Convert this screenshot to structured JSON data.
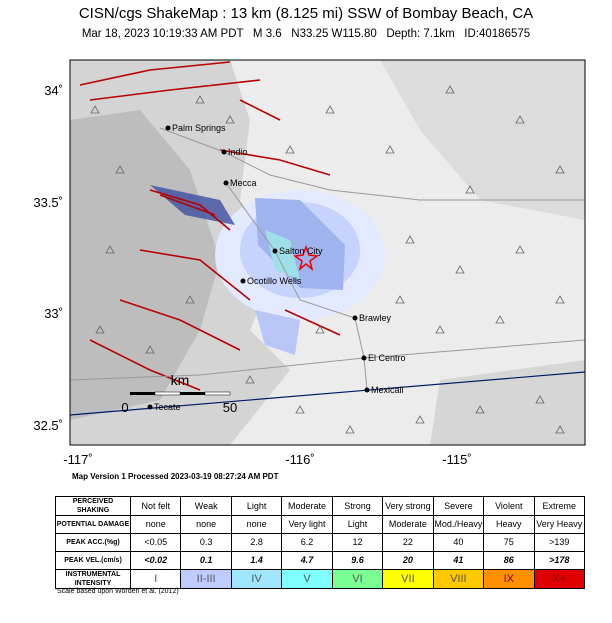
{
  "header": {
    "title": "CISN/cgs ShakeMap : 13 km (8.125 mi) SSW of Bombay Beach, CA",
    "subtitle": "Mar 18, 2023 10:19:33 AM PDT   M 3.6   N33.25 W115.80   Depth: 7.1km   ID:40186575"
  },
  "map": {
    "lat_labels": [
      "34˚",
      "33.5˚",
      "33˚",
      "32.5˚"
    ],
    "lon_labels": [
      "-117˚",
      "-116˚",
      "-115˚"
    ],
    "cities": [
      "Palm Springs",
      "Indio",
      "Mecca",
      "Salton City",
      "Ocotillo Wells",
      "Brawley",
      "El Centro",
      "Mexicali",
      "Tecate"
    ],
    "scale": {
      "unit": "km",
      "start": "0",
      "end": "50"
    },
    "version": "Map Version 1 Processed 2023-03-19 08:27:24 AM PDT"
  },
  "table": {
    "head": {
      "label": "PERCEIVED SHAKING",
      "cells": [
        "Not felt",
        "Weak",
        "Light",
        "Moderate",
        "Strong",
        "Very strong",
        "Severe",
        "Violent",
        "Extreme"
      ]
    },
    "rows": [
      {
        "label": "POTENTIAL DAMAGE",
        "cells": [
          "none",
          "none",
          "none",
          "Very light",
          "Light",
          "Moderate",
          "Mod./Heavy",
          "Heavy",
          "Very Heavy"
        ]
      },
      {
        "label": "PEAK ACC.(%g)",
        "cells": [
          "<0.05",
          "0.3",
          "2.8",
          "6.2",
          "12",
          "22",
          "40",
          "75",
          ">139"
        ]
      },
      {
        "label": "PEAK VEL.(cm/s)",
        "cells": [
          "<0.02",
          "0.1",
          "1.4",
          "4.7",
          "9.6",
          "20",
          "41",
          "86",
          ">178"
        ]
      },
      {
        "label": "INSTRUMENTAL INTENSITY",
        "cells": [
          "I",
          "II-III",
          "IV",
          "V",
          "VI",
          "VII",
          "VIII",
          "IX",
          "X+"
        ],
        "colors": [
          "#ffffff",
          "#bfccff",
          "#a0e6ff",
          "#80ffff",
          "#7aff93",
          "#ffff00",
          "#ffc800",
          "#ff9100",
          "#e00000"
        ]
      }
    ],
    "note": "Scale based upon Worden et al. (2012)"
  }
}
